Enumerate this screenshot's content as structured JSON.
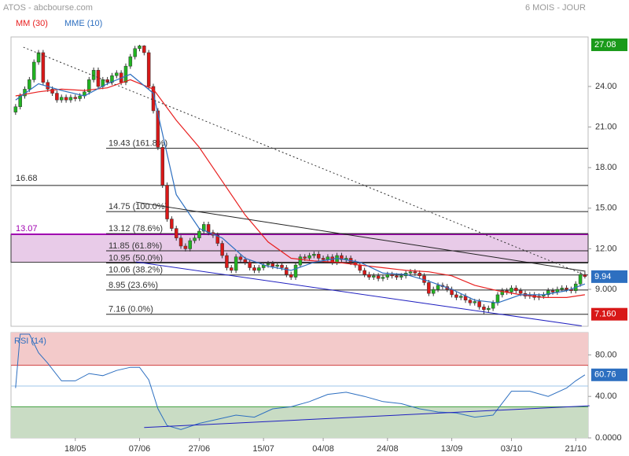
{
  "chart_data": [
    {
      "type": "candlestick",
      "title": "ATOS - abcbourse.com",
      "subtitle": "6 MOIS - JOUR",
      "up_color": "#22b422",
      "down_color": "#d81818",
      "xlim": [
        -1,
        124.7
      ],
      "ylim": [
        6.27,
        27.66
      ],
      "yticks": [
        {
          "value": 24,
          "label": "24.00"
        },
        {
          "value": 21,
          "label": "21.00"
        },
        {
          "value": 18,
          "label": "18.00"
        },
        {
          "value": 15,
          "label": "15.00"
        },
        {
          "value": 12,
          "label": "12.00"
        },
        {
          "value": 9,
          "label": "9.000"
        }
      ],
      "ohlc": [
        [
          22.1,
          22.7,
          21.9,
          22.5
        ],
        [
          22.5,
          23.5,
          22.3,
          23.3
        ],
        [
          23.3,
          24.0,
          23.1,
          23.8
        ],
        [
          23.8,
          24.7,
          23.6,
          24.5
        ],
        [
          24.5,
          26.0,
          24.3,
          25.8
        ],
        [
          25.8,
          26.7,
          25.6,
          26.5
        ],
        [
          26.5,
          26.7,
          24.1,
          24.3
        ],
        [
          24.3,
          24.5,
          23.6,
          23.8
        ],
        [
          23.8,
          24.0,
          23.3,
          23.5
        ],
        [
          23.5,
          23.7,
          22.8,
          23.0
        ],
        [
          23.0,
          23.4,
          22.8,
          23.2
        ],
        [
          23.2,
          23.4,
          22.8,
          23.0
        ],
        [
          23.0,
          23.4,
          22.8,
          23.2
        ],
        [
          23.2,
          23.4,
          22.9,
          23.1
        ],
        [
          23.1,
          23.5,
          22.9,
          23.3
        ],
        [
          23.3,
          23.8,
          23.1,
          23.6
        ],
        [
          23.6,
          24.7,
          23.4,
          24.5
        ],
        [
          24.5,
          25.4,
          24.3,
          25.2
        ],
        [
          25.2,
          25.4,
          23.8,
          24.0
        ],
        [
          24.0,
          24.7,
          23.8,
          24.5
        ],
        [
          24.5,
          24.7,
          24.1,
          24.3
        ],
        [
          24.3,
          25.0,
          24.1,
          24.8
        ],
        [
          24.8,
          25.2,
          24.6,
          25.0
        ],
        [
          25.0,
          25.2,
          24.1,
          24.3
        ],
        [
          24.3,
          25.7,
          24.1,
          25.5
        ],
        [
          25.5,
          26.4,
          25.3,
          26.2
        ],
        [
          26.2,
          27.0,
          26.0,
          26.8
        ],
        [
          26.8,
          27.08,
          26.6,
          27.0
        ],
        [
          27.0,
          27.05,
          26.3,
          26.5
        ],
        [
          26.5,
          26.7,
          23.8,
          24.0
        ],
        [
          24.0,
          24.2,
          22.0,
          22.2
        ],
        [
          22.2,
          22.4,
          19.3,
          19.5
        ],
        [
          19.5,
          19.7,
          16.5,
          16.7
        ],
        [
          16.7,
          16.9,
          14.0,
          14.2
        ],
        [
          14.2,
          14.4,
          13.3,
          13.5
        ],
        [
          13.5,
          13.7,
          12.6,
          12.8
        ],
        [
          12.8,
          13.0,
          12.0,
          12.2
        ],
        [
          12.2,
          12.4,
          11.8,
          12.0
        ],
        [
          12.0,
          12.8,
          11.8,
          12.6
        ],
        [
          12.6,
          13.0,
          12.4,
          12.8
        ],
        [
          12.8,
          13.5,
          12.6,
          13.3
        ],
        [
          13.3,
          14.0,
          13.1,
          13.8
        ],
        [
          13.8,
          14.0,
          13.0,
          13.2
        ],
        [
          13.2,
          13.4,
          12.8,
          13.0
        ],
        [
          13.0,
          13.2,
          12.2,
          12.4
        ],
        [
          12.4,
          12.6,
          11.3,
          11.5
        ],
        [
          11.5,
          11.7,
          10.4,
          10.6
        ],
        [
          10.6,
          10.8,
          10.2,
          10.4
        ],
        [
          10.4,
          11.6,
          10.2,
          11.4
        ],
        [
          11.4,
          11.6,
          11.0,
          11.2
        ],
        [
          11.2,
          11.4,
          10.8,
          11.0
        ],
        [
          11.0,
          11.2,
          10.4,
          10.6
        ],
        [
          10.6,
          10.8,
          10.2,
          10.4
        ],
        [
          10.4,
          10.8,
          10.2,
          10.6
        ],
        [
          10.6,
          11.0,
          10.4,
          10.8
        ],
        [
          10.8,
          11.1,
          10.6,
          10.9
        ],
        [
          10.9,
          11.1,
          10.5,
          10.7
        ],
        [
          10.7,
          11.0,
          10.5,
          10.8
        ],
        [
          10.8,
          11.0,
          10.4,
          10.6
        ],
        [
          10.6,
          10.8,
          9.9,
          10.1
        ],
        [
          10.1,
          10.3,
          9.7,
          9.9
        ],
        [
          9.9,
          11.0,
          9.7,
          10.8
        ],
        [
          10.8,
          11.6,
          10.6,
          11.4
        ],
        [
          11.4,
          11.6,
          11.1,
          11.3
        ],
        [
          11.3,
          11.7,
          11.1,
          11.5
        ],
        [
          11.5,
          11.8,
          11.3,
          11.6
        ],
        [
          11.6,
          11.8,
          11.1,
          11.3
        ],
        [
          11.3,
          11.5,
          11.0,
          11.2
        ],
        [
          11.2,
          11.6,
          11.0,
          11.4
        ],
        [
          11.4,
          11.6,
          10.8,
          11.0
        ],
        [
          11.0,
          11.7,
          10.8,
          11.5
        ],
        [
          11.5,
          11.7,
          11.0,
          11.2
        ],
        [
          11.2,
          11.5,
          11.0,
          11.3
        ],
        [
          11.3,
          11.5,
          10.8,
          11.0
        ],
        [
          11.0,
          11.2,
          10.6,
          10.8
        ],
        [
          10.8,
          11.0,
          10.2,
          10.4
        ],
        [
          10.4,
          10.6,
          9.9,
          10.1
        ],
        [
          10.1,
          10.3,
          9.7,
          9.9
        ],
        [
          9.9,
          10.2,
          9.7,
          10.0
        ],
        [
          10.0,
          10.2,
          9.6,
          9.8
        ],
        [
          9.8,
          10.1,
          9.6,
          9.9
        ],
        [
          9.9,
          10.3,
          9.7,
          10.1
        ],
        [
          10.1,
          10.3,
          9.8,
          10.0
        ],
        [
          10.0,
          10.2,
          9.7,
          9.9
        ],
        [
          9.9,
          10.2,
          9.7,
          10.0
        ],
        [
          10.0,
          10.4,
          9.8,
          10.2
        ],
        [
          10.2,
          10.5,
          10.0,
          10.3
        ],
        [
          10.3,
          10.5,
          10.0,
          10.2
        ],
        [
          10.2,
          10.4,
          9.8,
          10.0
        ],
        [
          10.0,
          10.2,
          9.3,
          9.5
        ],
        [
          9.5,
          9.7,
          8.5,
          8.7
        ],
        [
          8.7,
          9.2,
          8.5,
          9.0
        ],
        [
          9.0,
          9.5,
          8.8,
          9.3
        ],
        [
          9.3,
          9.5,
          9.0,
          9.2
        ],
        [
          9.2,
          9.4,
          8.8,
          9.0
        ],
        [
          9.0,
          9.2,
          8.4,
          8.6
        ],
        [
          8.6,
          8.8,
          8.2,
          8.4
        ],
        [
          8.4,
          8.7,
          8.2,
          8.5
        ],
        [
          8.5,
          8.7,
          8.0,
          8.2
        ],
        [
          8.2,
          8.4,
          7.8,
          8.0
        ],
        [
          8.0,
          8.3,
          7.8,
          8.1
        ],
        [
          8.1,
          8.3,
          7.5,
          7.7
        ],
        [
          7.7,
          7.9,
          7.16,
          7.5
        ],
        [
          7.5,
          7.8,
          7.3,
          7.6
        ],
        [
          7.6,
          8.2,
          7.4,
          8.0
        ],
        [
          8.0,
          8.8,
          7.8,
          8.6
        ],
        [
          8.6,
          9.1,
          8.4,
          8.9
        ],
        [
          8.9,
          9.1,
          8.6,
          8.8
        ],
        [
          8.8,
          9.3,
          8.6,
          9.1
        ],
        [
          9.1,
          9.3,
          8.7,
          8.9
        ],
        [
          8.9,
          9.1,
          8.5,
          8.7
        ],
        [
          8.7,
          8.9,
          8.3,
          8.5
        ],
        [
          8.5,
          8.8,
          8.3,
          8.6
        ],
        [
          8.6,
          8.8,
          8.2,
          8.4
        ],
        [
          8.4,
          8.7,
          8.2,
          8.5
        ],
        [
          8.5,
          8.8,
          8.3,
          8.6
        ],
        [
          8.6,
          9.1,
          8.4,
          8.9
        ],
        [
          8.9,
          9.1,
          8.6,
          8.8
        ],
        [
          8.8,
          9.2,
          8.6,
          9.0
        ],
        [
          9.0,
          9.3,
          8.8,
          9.1
        ],
        [
          9.1,
          9.3,
          8.8,
          9.0
        ],
        [
          9.0,
          9.2,
          8.7,
          8.9
        ],
        [
          8.9,
          9.6,
          8.7,
          9.4
        ],
        [
          9.4,
          10.3,
          9.2,
          10.1
        ],
        [
          10.1,
          10.3,
          9.8,
          9.94
        ]
      ],
      "overlays": {
        "x": [
          0,
          5,
          10,
          15,
          20,
          25,
          30,
          35,
          40,
          45,
          50,
          55,
          60,
          65,
          70,
          75,
          80,
          85,
          90,
          95,
          100,
          105,
          110,
          115,
          120,
          124
        ],
        "series": [
          {
            "name": "MM (30)",
            "color": "#e82020",
            "values": [
              23.3,
              23.6,
              23.8,
              23.7,
              23.9,
              24.5,
              23.8,
              21.5,
              19.5,
              17.0,
              14.5,
              12.5,
              11.3,
              11.1,
              11.0,
              10.8,
              10.6,
              10.4,
              10.3,
              10.0,
              9.3,
              8.9,
              8.6,
              8.4,
              8.4,
              8.6
            ]
          },
          {
            "name": "MME (10)",
            "color": "#2d6fc0",
            "values": [
              23.0,
              24.2,
              23.7,
              23.3,
              24.2,
              24.9,
              23.5,
              16.0,
              13.5,
              12.8,
              11.3,
              10.7,
              10.4,
              11.0,
              11.3,
              11.0,
              10.2,
              10.1,
              9.6,
              9.0,
              8.2,
              8.0,
              8.6,
              8.6,
              8.9,
              9.4
            ]
          }
        ]
      },
      "fibonacci": [
        {
          "value": 19.43,
          "label": "19.43  (161.8%)"
        },
        {
          "value": 14.75,
          "label": "14.75  (100.0%)"
        },
        {
          "value": 13.12,
          "label": "13.12  (78.6%)"
        },
        {
          "value": 11.85,
          "label": "11.85  (61.8%)"
        },
        {
          "value": 10.95,
          "label": "10.95  (50.0%)"
        },
        {
          "value": 10.06,
          "label": "10.06  (38.2%)"
        },
        {
          "value": 8.95,
          "label": "8.95  (23.6%)"
        },
        {
          "value": 7.16,
          "label": "7.16  (0.0%)"
        }
      ],
      "levels": [
        16.68
      ],
      "zone": {
        "from": 13.07,
        "to": 11.0,
        "color": "#a000b0"
      },
      "trendlines": [
        {
          "from": [
            1.7,
            26.9
          ],
          "to": [
            124.1,
            10.05
          ],
          "color": "#333333",
          "style": "dotted"
        },
        {
          "from": [
            26.2,
            15.45
          ],
          "to": [
            124.1,
            10.34
          ],
          "color": "#222222",
          "style": "solid"
        },
        {
          "from": [
            26.2,
            11.03
          ],
          "to": [
            123.3,
            6.3
          ],
          "color": "#2020c0",
          "style": "solid"
        }
      ],
      "badges": [
        {
          "value": 27.08,
          "color": "#1a9a1a"
        },
        {
          "value": 9.94,
          "color": "#2d6fc0"
        },
        {
          "value": 7.16,
          "label": "7.160",
          "color": "#d81818"
        }
      ]
    },
    {
      "type": "line",
      "title": "RSI (14)",
      "color": "#2d6fc0",
      "xlim": [
        -1,
        124.7
      ],
      "ylim": [
        0,
        101.5
      ],
      "yticks": [
        {
          "value": 80,
          "label": "80.00"
        },
        {
          "value": 40,
          "label": "40.00"
        },
        {
          "value": 0,
          "label": "0.0000"
        }
      ],
      "xticks": [
        {
          "value": 13,
          "label": "18/05"
        },
        {
          "value": 27,
          "label": "07/06"
        },
        {
          "value": 40,
          "label": "27/06"
        },
        {
          "value": 54,
          "label": "15/07"
        },
        {
          "value": 67,
          "label": "04/08"
        },
        {
          "value": 81,
          "label": "24/08"
        },
        {
          "value": 95,
          "label": "13/09"
        },
        {
          "value": 108,
          "label": "03/10"
        },
        {
          "value": 122,
          "label": "21/10"
        }
      ],
      "overbought": 70,
      "oversold": 30,
      "midline": 50,
      "x": [
        0,
        1,
        3,
        5,
        7,
        10,
        13,
        16,
        19,
        22,
        25,
        27,
        29,
        31,
        33,
        36,
        40,
        44,
        48,
        52,
        56,
        60,
        64,
        68,
        72,
        76,
        80,
        84,
        88,
        92,
        96,
        100,
        104,
        108,
        112,
        116,
        120,
        122,
        124
      ],
      "values": [
        48,
        100,
        100,
        82,
        72,
        55,
        55,
        62,
        60,
        65,
        68,
        68,
        56,
        28,
        12,
        8,
        14,
        18,
        22,
        20,
        28,
        30,
        35,
        42,
        44,
        40,
        35,
        33,
        28,
        25,
        24,
        20,
        22,
        45,
        45,
        40,
        48,
        55,
        60.76
      ],
      "trendlines": [
        {
          "from": [
            28,
            10
          ],
          "to": [
            125,
            31
          ],
          "color": "#2020c0",
          "style": "solid"
        }
      ],
      "badges": [
        {
          "value": 60.76,
          "color": "#2d6fc0"
        }
      ]
    }
  ]
}
